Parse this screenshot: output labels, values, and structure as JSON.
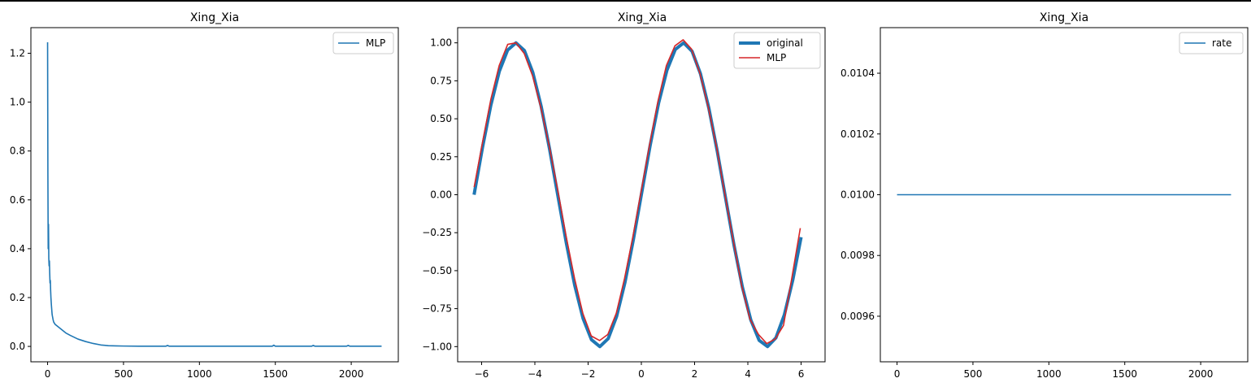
{
  "chart_data": [
    {
      "type": "line",
      "title": "Xing_Xia",
      "xlim": [
        -110,
        2310
      ],
      "ylim": [
        -0.063,
        1.305
      ],
      "xticks": [
        0,
        500,
        1000,
        1500,
        2000
      ],
      "xtick_labels": [
        "0",
        "500",
        "1000",
        "1500",
        "2000"
      ],
      "yticks": [
        0.0,
        0.2,
        0.4,
        0.6,
        0.8,
        1.0,
        1.2
      ],
      "ytick_labels": [
        "0.0",
        "0.2",
        "0.4",
        "0.6",
        "0.8",
        "1.0",
        "1.2"
      ],
      "legend": "top-right",
      "series": [
        {
          "name": "MLP",
          "color": "#1f77b4",
          "x": [
            0,
            2,
            4,
            6,
            8,
            10,
            12,
            14,
            16,
            18,
            20,
            22,
            25,
            28,
            30,
            33,
            36,
            40,
            45,
            50,
            60,
            70,
            80,
            100,
            120,
            150,
            200,
            250,
            300,
            350,
            400,
            450,
            500,
            600,
            700,
            780,
            790,
            800,
            1000,
            1200,
            1400,
            1480,
            1490,
            1500,
            1700,
            1740,
            1750,
            1760,
            1970,
            1980,
            1990,
            2200
          ],
          "y": [
            1.245,
            0.7,
            0.4,
            0.5,
            0.36,
            0.33,
            0.35,
            0.3,
            0.26,
            0.27,
            0.23,
            0.2,
            0.17,
            0.145,
            0.13,
            0.12,
            0.11,
            0.1,
            0.095,
            0.09,
            0.085,
            0.08,
            0.075,
            0.065,
            0.055,
            0.045,
            0.03,
            0.02,
            0.012,
            0.006,
            0.003,
            0.002,
            0.0015,
            0.001,
            0.001,
            0.001,
            0.004,
            0.001,
            0.001,
            0.001,
            0.001,
            0.001,
            0.005,
            0.001,
            0.001,
            0.001,
            0.004,
            0.001,
            0.001,
            0.004,
            0.001,
            0.001
          ]
        }
      ]
    },
    {
      "type": "line",
      "title": "Xing_Xia",
      "xlim": [
        -6.9,
        6.9
      ],
      "ylim": [
        -1.1,
        1.1
      ],
      "xticks": [
        -6,
        -4,
        -2,
        0,
        2,
        4,
        6
      ],
      "xtick_labels": [
        "−6",
        "−4",
        "−2",
        "0",
        "2",
        "4",
        "6"
      ],
      "yticks": [
        -1.0,
        -0.75,
        -0.5,
        -0.25,
        0.0,
        0.25,
        0.5,
        0.75,
        1.0
      ],
      "ytick_labels": [
        "−1.00",
        "−0.75",
        "−0.50",
        "−0.25",
        "0.00",
        "0.25",
        "0.50",
        "0.75",
        "1.00"
      ],
      "legend": "top-right",
      "series": [
        {
          "name": "original",
          "color": "#1f77b4",
          "function": "sin",
          "x_range": [
            -6.283,
            6.0
          ],
          "points": 40
        },
        {
          "name": "MLP",
          "color": "#d62728",
          "x": [
            -6.28,
            -5.96,
            -5.65,
            -5.34,
            -5.02,
            -4.71,
            -4.4,
            -4.08,
            -3.77,
            -3.46,
            -3.14,
            -2.83,
            -2.51,
            -2.2,
            -1.88,
            -1.57,
            -1.26,
            -0.94,
            -0.63,
            -0.31,
            0.0,
            0.31,
            0.63,
            0.94,
            1.26,
            1.57,
            1.88,
            2.2,
            2.51,
            2.83,
            3.14,
            3.46,
            3.77,
            4.08,
            4.4,
            4.71,
            5.03,
            5.34,
            5.65,
            5.97
          ],
          "y": [
            0.05,
            0.35,
            0.63,
            0.85,
            0.99,
            1.0,
            0.93,
            0.78,
            0.57,
            0.32,
            0.03,
            -0.27,
            -0.55,
            -0.78,
            -0.93,
            -0.96,
            -0.92,
            -0.78,
            -0.55,
            -0.27,
            0.03,
            0.33,
            0.62,
            0.85,
            0.98,
            1.02,
            0.96,
            0.8,
            0.58,
            0.31,
            0.0,
            -0.31,
            -0.6,
            -0.82,
            -0.92,
            -0.98,
            -0.95,
            -0.86,
            -0.55,
            -0.22
          ]
        }
      ]
    },
    {
      "type": "line",
      "title": "Xing_Xia",
      "xlim": [
        -110,
        2310
      ],
      "ylim": [
        0.00945,
        0.01055
      ],
      "xticks": [
        0,
        500,
        1000,
        1500,
        2000
      ],
      "xtick_labels": [
        "0",
        "500",
        "1000",
        "1500",
        "2000"
      ],
      "yticks": [
        0.0096,
        0.0098,
        0.01,
        0.0102,
        0.0104
      ],
      "ytick_labels": [
        "0.0096",
        "0.0098",
        "0.0100",
        "0.0102",
        "0.0104"
      ],
      "legend": "top-right",
      "series": [
        {
          "name": "rate",
          "color": "#1f77b4",
          "x": [
            0,
            2200
          ],
          "y": [
            0.01,
            0.01
          ]
        }
      ]
    }
  ]
}
